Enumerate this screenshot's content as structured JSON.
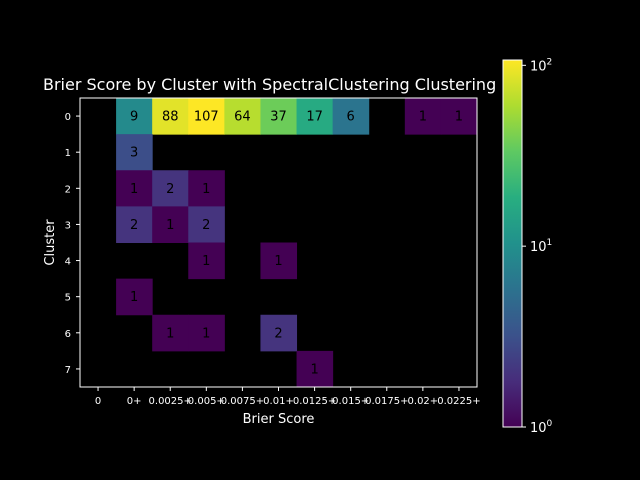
{
  "chart_data": {
    "type": "heatmap",
    "title": "Brier Score by Cluster with SpectralClustering Clustering",
    "xlabel": "Brier Score",
    "ylabel": "Cluster",
    "x_tick_labels": [
      "0",
      "0+",
      "0.0025+",
      "0.005+",
      "0.0075+",
      "0.01+",
      "0.0125+",
      "0.015+",
      "0.0175+",
      "0.02+",
      "0.0225+"
    ],
    "y_tick_labels": [
      "0",
      "1",
      "2",
      "3",
      "4",
      "5",
      "6",
      "7"
    ],
    "matrix": [
      [
        null,
        9,
        88,
        107,
        64,
        37,
        17,
        6,
        null,
        1,
        1
      ],
      [
        null,
        3,
        null,
        null,
        null,
        null,
        null,
        null,
        null,
        null,
        null
      ],
      [
        null,
        1,
        2,
        1,
        null,
        null,
        null,
        null,
        null,
        null,
        null
      ],
      [
        null,
        2,
        1,
        2,
        null,
        null,
        null,
        null,
        null,
        null,
        null
      ],
      [
        null,
        null,
        null,
        1,
        null,
        1,
        null,
        null,
        null,
        null,
        null
      ],
      [
        null,
        1,
        null,
        null,
        null,
        null,
        null,
        null,
        null,
        null,
        null
      ],
      [
        null,
        null,
        1,
        1,
        null,
        2,
        null,
        null,
        null,
        null,
        null
      ],
      [
        null,
        null,
        null,
        null,
        null,
        null,
        1,
        null,
        null,
        null,
        null
      ]
    ],
    "colormap": "viridis",
    "color_scale": "log",
    "color_range": [
      1,
      107
    ],
    "colorbar_ticks": [
      {
        "value": 1,
        "label": "10",
        "exp": "0"
      },
      {
        "value": 10,
        "label": "10",
        "exp": "1"
      },
      {
        "value": 100,
        "label": "10",
        "exp": "2"
      }
    ],
    "background": "#000000",
    "grid": false
  }
}
